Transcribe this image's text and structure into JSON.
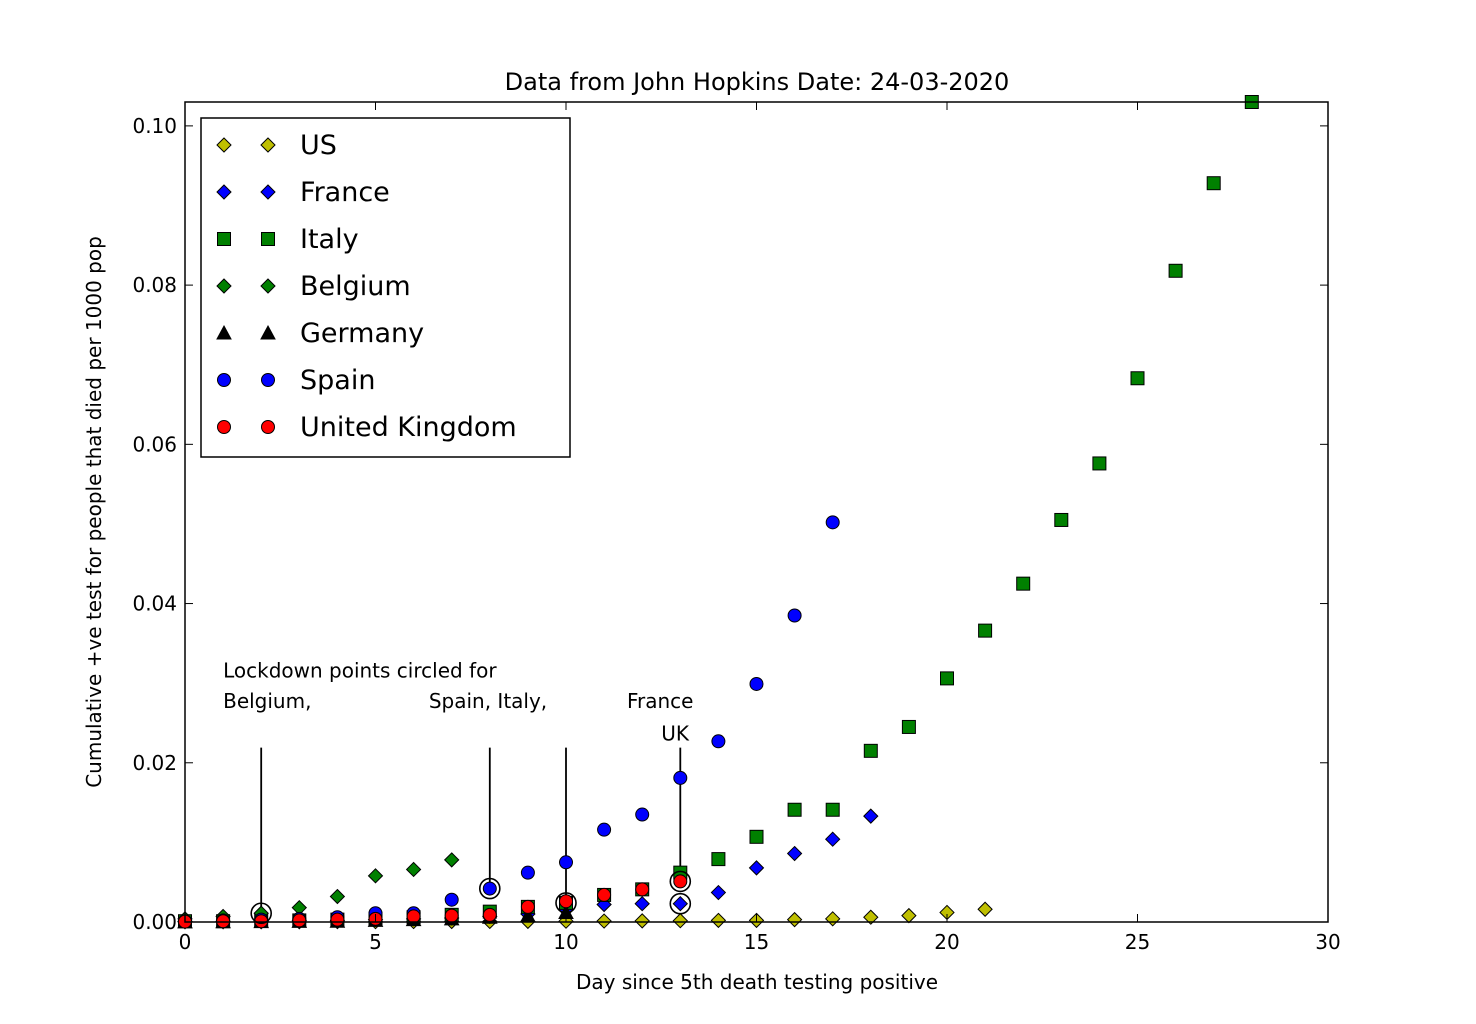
{
  "chart_data": {
    "type": "scatter",
    "title": "Data from John Hopkins Date: 24-03-2020",
    "xlabel": "Day since 5th death testing positive",
    "ylabel": "Cumulative +ve test for people that died per 1000 pop",
    "xlim": [
      0,
      30
    ],
    "ylim": [
      0,
      0.103
    ],
    "xticks": [
      "0",
      "5",
      "10",
      "15",
      "20",
      "25",
      "30"
    ],
    "yticks": [
      "0.00",
      "0.02",
      "0.04",
      "0.06",
      "0.08",
      "0.10"
    ],
    "grid": false,
    "legend_position": "top-left",
    "series": [
      {
        "name": "US",
        "marker": "diamond",
        "color": "#bfbf00",
        "x": [
          0,
          1,
          2,
          3,
          4,
          5,
          6,
          7,
          8,
          9,
          10,
          11,
          12,
          13,
          14,
          15,
          16,
          17,
          18,
          19,
          20,
          21
        ],
        "y": [
          2e-05,
          2e-05,
          3e-05,
          3e-05,
          4e-05,
          4e-05,
          5e-05,
          6e-05,
          7e-05,
          8e-05,
          0.0001,
          0.00012,
          0.00014,
          0.00016,
          0.0002,
          0.0002,
          0.0003,
          0.0004,
          0.0006,
          0.0008,
          0.0012,
          0.0016
        ]
      },
      {
        "name": "France",
        "marker": "diamond",
        "color": "#0000ff",
        "x": [
          0,
          1,
          2,
          3,
          4,
          5,
          6,
          7,
          8,
          9,
          10,
          11,
          12,
          13,
          14,
          15,
          16,
          17,
          18
        ],
        "y": [
          0.0001,
          0.0001,
          0.0001,
          0.0002,
          0.0002,
          0.0003,
          0.0004,
          0.0005,
          0.0007,
          0.001,
          0.0015,
          0.0022,
          0.0023,
          0.0023,
          0.0037,
          0.0068,
          0.0086,
          0.0104,
          0.0133
        ]
      },
      {
        "name": "Italy",
        "marker": "square",
        "color": "#008000",
        "x": [
          0,
          1,
          2,
          3,
          4,
          5,
          6,
          7,
          8,
          9,
          10,
          11,
          12,
          13,
          14,
          15,
          16,
          17,
          18,
          19,
          20,
          21,
          22,
          23,
          24,
          25,
          26,
          27,
          28
        ],
        "y": [
          0.0001,
          0.0001,
          0.0002,
          0.0002,
          0.0003,
          0.0004,
          0.0006,
          0.0009,
          0.0013,
          0.0019,
          0.0024,
          0.0034,
          0.0041,
          0.0062,
          0.0079,
          0.0107,
          0.0141,
          0.0141,
          0.0215,
          0.0245,
          0.0306,
          0.0366,
          0.0425,
          0.0505,
          0.0576,
          0.0683,
          0.0818,
          0.0928,
          0.103
        ]
      },
      {
        "name": "Belgium",
        "marker": "diamond",
        "color": "#008000",
        "x": [
          0,
          1,
          2,
          3,
          4,
          5,
          6,
          7
        ],
        "y": [
          0.0004,
          0.0007,
          0.0011,
          0.0018,
          0.0032,
          0.0058,
          0.0066,
          0.0078
        ]
      },
      {
        "name": "Germany",
        "marker": "triangle",
        "color": "#000000",
        "x": [
          0,
          1,
          2,
          3,
          4,
          5,
          6,
          7,
          8,
          9,
          10
        ],
        "y": [
          2e-05,
          3e-05,
          5e-05,
          8e-05,
          0.0001,
          0.0002,
          0.0003,
          0.0004,
          0.0006,
          0.0008,
          0.0012
        ]
      },
      {
        "name": "Spain",
        "marker": "circle",
        "color": "#0000ff",
        "x": [
          0,
          1,
          2,
          3,
          4,
          5,
          6,
          7,
          8,
          9,
          10,
          11,
          12,
          13,
          14,
          15,
          16,
          17
        ],
        "y": [
          0.0001,
          0.0002,
          0.0003,
          0.0004,
          0.0006,
          0.0011,
          0.0011,
          0.0028,
          0.0042,
          0.0062,
          0.0075,
          0.0116,
          0.0135,
          0.0181,
          0.0227,
          0.0299,
          0.0385,
          0.0502
        ]
      },
      {
        "name": "United Kingdom",
        "marker": "circle",
        "color": "#ff0000",
        "x": [
          0,
          1,
          2,
          3,
          4,
          5,
          6,
          7,
          8,
          9,
          10,
          11,
          12,
          13
        ],
        "y": [
          5e-05,
          0.0001,
          0.0001,
          0.0002,
          0.0003,
          0.0004,
          0.0007,
          0.0008,
          0.0009,
          0.0019,
          0.0026,
          0.0034,
          0.0041,
          0.0051
        ]
      }
    ],
    "lockdown_circles": [
      {
        "x": 2,
        "y": 0.0011
      },
      {
        "x": 8,
        "y": 0.0042
      },
      {
        "x": 10,
        "y": 0.0024
      },
      {
        "x": 13,
        "y": 0.0051
      },
      {
        "x": 13,
        "y": 0.0023
      }
    ],
    "annotations": [
      {
        "text": "Lockdown points circled for",
        "x": 1.0,
        "y": 0.0307,
        "anchor": "start"
      },
      {
        "text": "Belgium,",
        "x": 1.0,
        "y": 0.0269,
        "anchor": "start"
      },
      {
        "text": "Spain, Italy,",
        "x": 6.4,
        "y": 0.0269,
        "anchor": "start"
      },
      {
        "text": "France",
        "x": 11.6,
        "y": 0.0269,
        "anchor": "start"
      },
      {
        "text": "UK",
        "x": 12.5,
        "y": 0.0228,
        "anchor": "start"
      }
    ],
    "lockdown_lines": [
      {
        "x": 2,
        "y_top": 0.0219,
        "y_bottom": 0.0011
      },
      {
        "x": 8,
        "y_top": 0.0219,
        "y_bottom": 0.0042
      },
      {
        "x": 10,
        "y_top": 0.0219,
        "y_bottom": 0.0024
      },
      {
        "x": 13,
        "y_top": 0.0219,
        "y_bottom": 0.0051
      }
    ]
  }
}
